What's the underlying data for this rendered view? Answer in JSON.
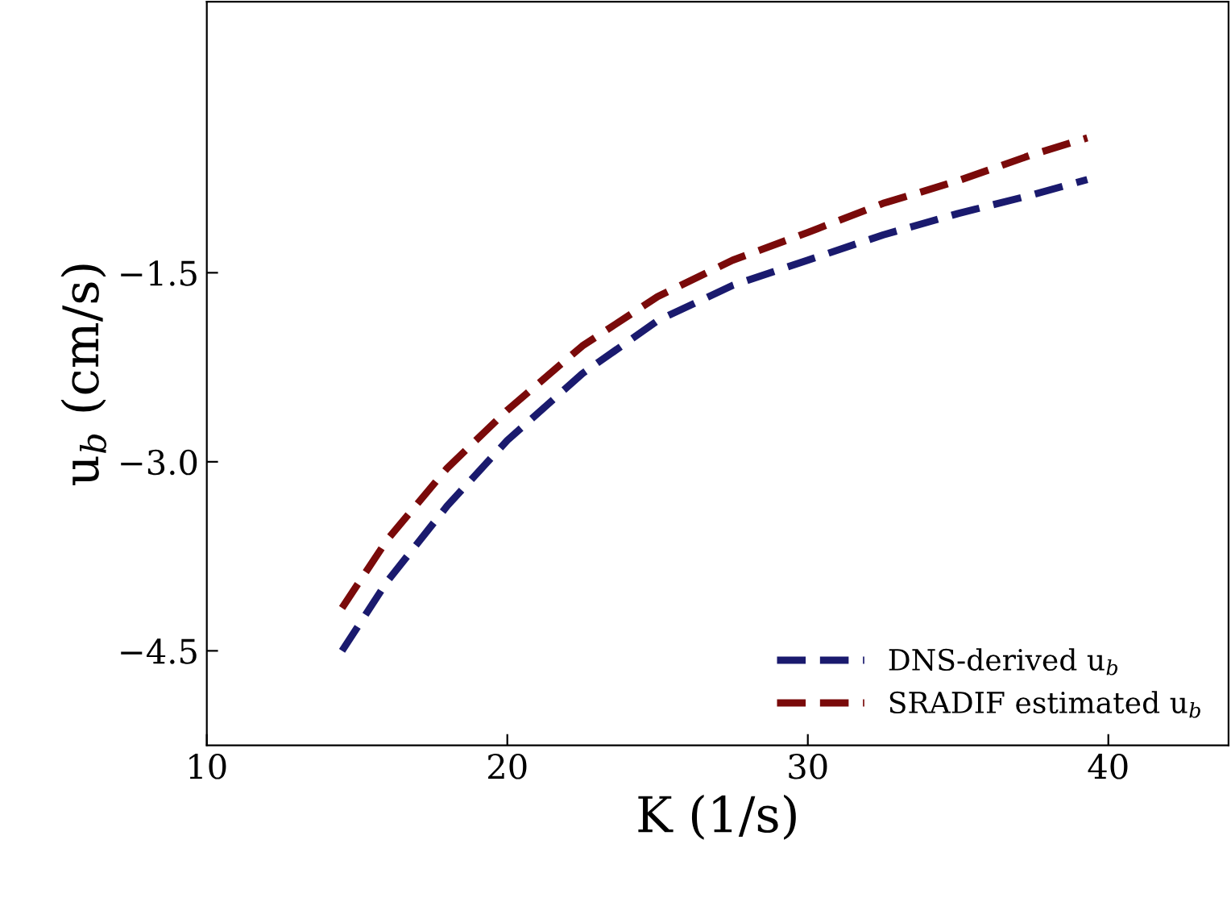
{
  "chart_data": {
    "type": "line",
    "xlabel": "K (1/s)",
    "ylabel": "u$_{b}$ (cm/s)",
    "xlim": [
      10,
      44
    ],
    "xticks": [
      10,
      20,
      30,
      40
    ],
    "ylim": [
      -5.25,
      0.65
    ],
    "yticks": [
      {
        "value": -1.5,
        "label": "−1.5"
      },
      {
        "value": -3.0,
        "label": "−3.0"
      },
      {
        "value": -4.5,
        "label": "−4.5"
      }
    ],
    "series": [
      {
        "name": "DNS-derived u$_{b}$",
        "color": "#1a1a6e",
        "x": [
          14.5,
          16,
          18,
          20,
          22.5,
          25,
          27.5,
          30,
          32.5,
          35,
          37.5,
          39.3
        ],
        "values": [
          -4.5,
          -3.95,
          -3.35,
          -2.83,
          -2.3,
          -1.88,
          -1.6,
          -1.4,
          -1.2,
          -1.03,
          -0.88,
          -0.76
        ]
      },
      {
        "name": "SRADIF estimated u$_{b}$",
        "color": "#7a0a0a",
        "x": [
          14.5,
          16,
          18,
          20,
          22.5,
          25,
          27.5,
          30,
          32.5,
          35,
          37.5,
          39.3
        ],
        "values": [
          -4.16,
          -3.62,
          -3.05,
          -2.59,
          -2.08,
          -1.69,
          -1.4,
          -1.18,
          -0.95,
          -0.77,
          -0.56,
          -0.43
        ]
      }
    ],
    "line_style": "dashed",
    "marker": "none",
    "grid": false,
    "legend": "bottom right"
  }
}
